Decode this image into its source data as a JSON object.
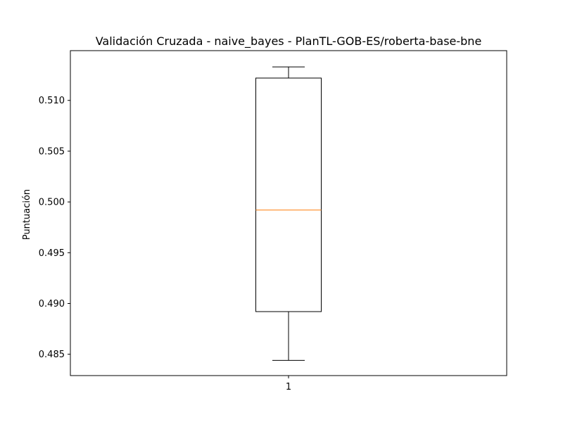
{
  "chart_data": {
    "type": "boxplot",
    "title": "Validación Cruzada - naive_bayes - PlanTL-GOB-ES/roberta-base-bne",
    "xlabel": "",
    "ylabel": "Puntuación",
    "categories": [
      "1"
    ],
    "boxes": [
      {
        "category": "1",
        "whisker_low": 0.4844,
        "q1": 0.4892,
        "median": 0.4992,
        "q3": 0.5122,
        "whisker_high": 0.5133
      }
    ],
    "ylim": [
      0.4829,
      0.5149
    ],
    "yticks": [
      "0.485",
      "0.490",
      "0.495",
      "0.500",
      "0.505",
      "0.510"
    ],
    "grid": false,
    "colors": {
      "box": "#000000",
      "median": "#ff7f0e",
      "axes": "#000000"
    }
  }
}
